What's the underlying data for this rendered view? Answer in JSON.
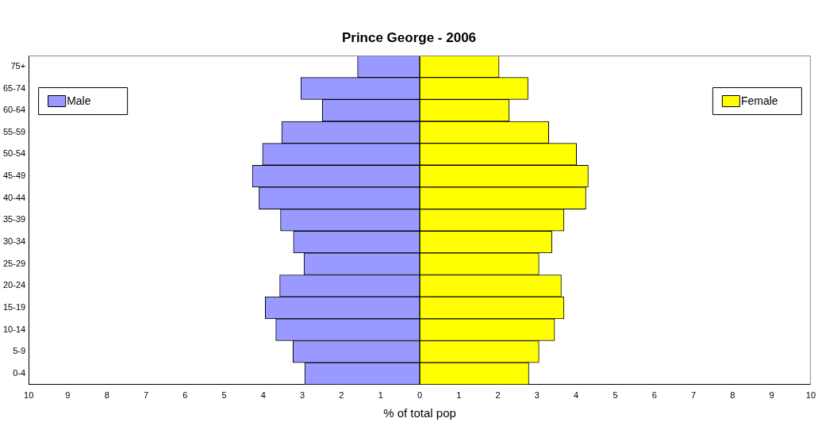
{
  "chart_data": {
    "type": "bar",
    "orientation": "horizontal",
    "stacked": true,
    "title": "Prince George - 2006",
    "xlabel": "% of total pop",
    "categories": [
      "75+",
      "65-74",
      "60-64",
      "55-59",
      "50-54",
      "45-49",
      "40-44",
      "35-39",
      "30-34",
      "25-29",
      "20-24",
      "15-19",
      "10-14",
      "5-9",
      "0-4"
    ],
    "series": [
      {
        "name": "Male",
        "color": "#9999ff",
        "values": [
          -1.59,
          -3.04,
          -2.49,
          -3.53,
          -4.02,
          -4.28,
          -4.11,
          -3.56,
          -3.23,
          -2.96,
          -3.58,
          -3.95,
          -3.68,
          -3.24,
          -2.94
        ]
      },
      {
        "name": "Female",
        "color": "#ffff00",
        "values": [
          2.03,
          2.77,
          2.29,
          3.3,
          4.01,
          4.31,
          4.25,
          3.69,
          3.38,
          3.05,
          3.62,
          3.69,
          3.45,
          3.05,
          2.79
        ]
      }
    ],
    "xlim": [
      -10,
      10
    ],
    "xticks": [
      {
        "value": -10,
        "label": "10"
      },
      {
        "value": -9,
        "label": "9"
      },
      {
        "value": -8,
        "label": "8"
      },
      {
        "value": -7,
        "label": "7"
      },
      {
        "value": -6,
        "label": "6"
      },
      {
        "value": -5,
        "label": "5"
      },
      {
        "value": -4,
        "label": "4"
      },
      {
        "value": -3,
        "label": "3"
      },
      {
        "value": -2,
        "label": "2"
      },
      {
        "value": -1,
        "label": "1"
      },
      0,
      1,
      2,
      3,
      4,
      5,
      6,
      7,
      8,
      9,
      10
    ],
    "grid": false,
    "legend": "top"
  }
}
